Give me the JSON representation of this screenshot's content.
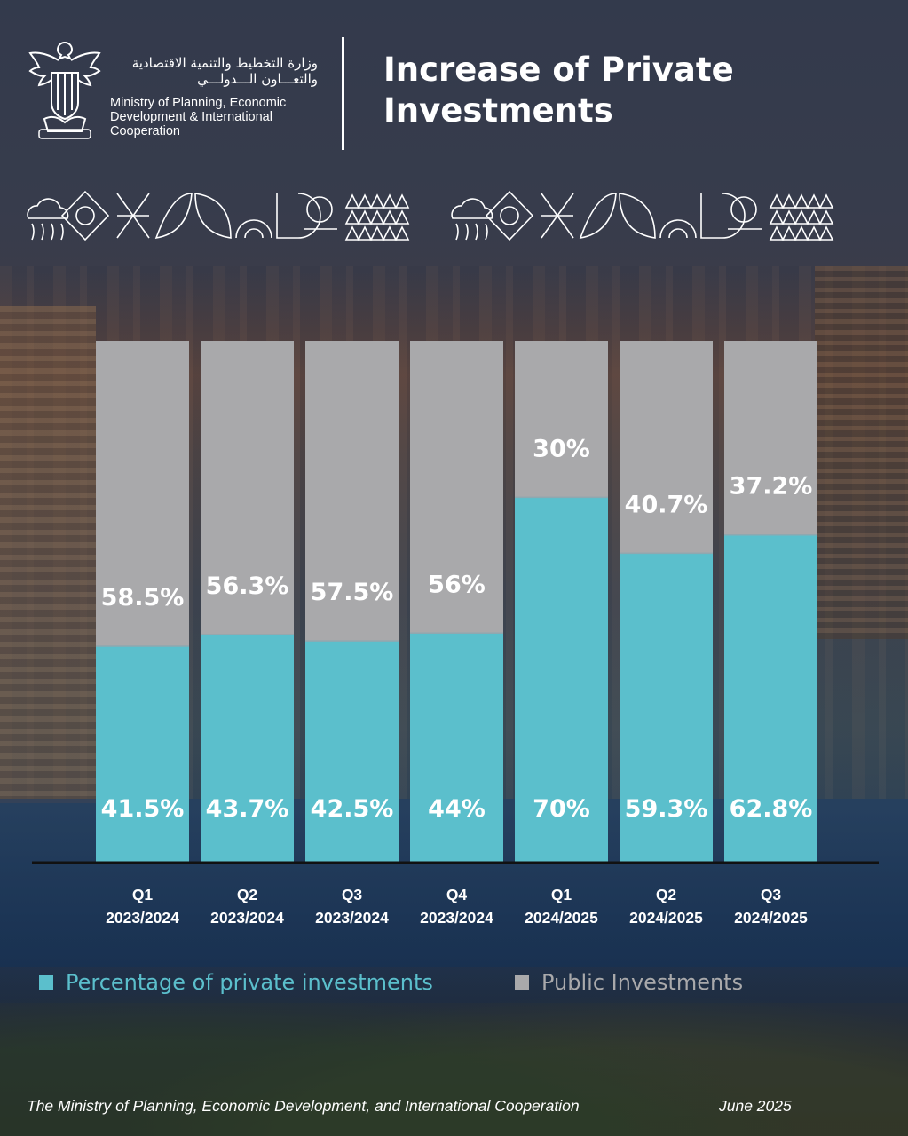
{
  "header": {
    "ministry_ar_line1": "وزارة التخطيط والتنمية الاقتصادية",
    "ministry_ar_line2": "والتعـــاون الـــدولـــي",
    "ministry_en_line1": "Ministry of Planning, Economic",
    "ministry_en_line2": "Development & International",
    "ministry_en_line3": "Cooperation",
    "title_line1": "Increase of Private",
    "title_line2": "Investments"
  },
  "chart_data": {
    "type": "bar",
    "stacked": true,
    "title": "Increase of Private Investments",
    "categories": [
      [
        "Q1",
        "2023/2024"
      ],
      [
        "Q2",
        "2023/2024"
      ],
      [
        "Q3",
        "2023/2024"
      ],
      [
        "Q4",
        "2023/2024"
      ],
      [
        "Q1",
        "2024/2025"
      ],
      [
        "Q2",
        "2024/2025"
      ],
      [
        "Q3",
        "2024/2025"
      ]
    ],
    "series": [
      {
        "name": "Percentage of private investments",
        "color": "#5bbfcc",
        "values": [
          41.5,
          43.7,
          42.5,
          44,
          70,
          59.3,
          62.8
        ],
        "labels": [
          "41.5%",
          "43.7%",
          "42.5%",
          "44%",
          "70%",
          "59.3%",
          "62.8%"
        ]
      },
      {
        "name": "Public Investments",
        "color": "#a9a9ab",
        "values": [
          58.5,
          56.3,
          57.5,
          56,
          30,
          40.7,
          37.2
        ],
        "labels": [
          "58.5%",
          "56.3%",
          "57.5%",
          "56%",
          "30%",
          "40.7%",
          "37.2%"
        ]
      }
    ],
    "ylim": [
      0,
      100
    ],
    "grid": false,
    "legend_position": "bottom-left"
  },
  "legend": {
    "private_label": "Percentage of private investments",
    "private_color": "#5bbfcc",
    "public_label": "Public Investments",
    "public_color": "#a9a9ab"
  },
  "footer": {
    "source": "The Ministry of Planning, Economic Development, and International Cooperation",
    "date": "June 2025"
  }
}
